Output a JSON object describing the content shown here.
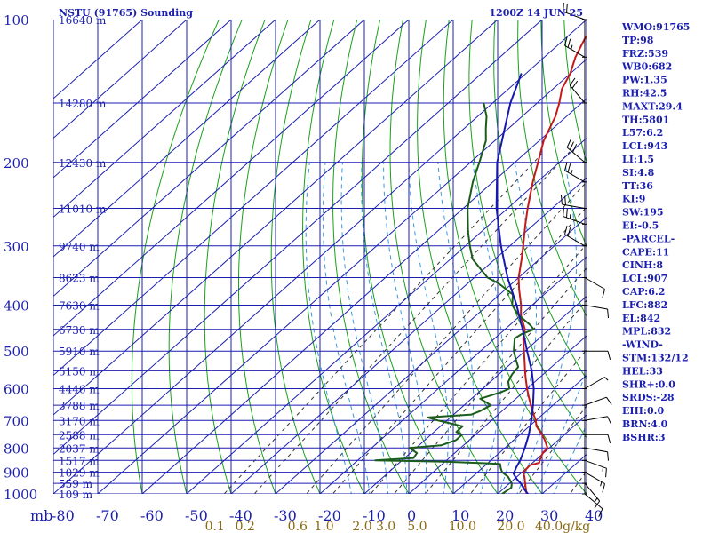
{
  "header": {
    "station": "NSTU (91765) Sounding",
    "time": "1200Z 14 JUN 25"
  },
  "colors": {
    "grid": "#1b1fb0",
    "temperature": "#c41a1a",
    "dewpoint": "#1a5c1a",
    "parcel": "#1818b0",
    "dry_adiabat": "#1aa01a",
    "moist_adiabat": "#3a98e0",
    "mixing_ratio": "#333333",
    "wind": "#000000"
  },
  "chart_data": {
    "type": "line",
    "title": "NSTU (91765) Sounding",
    "xlabel": "",
    "ylabel": "mb",
    "xlim": [
      -80,
      40
    ],
    "ylim": [
      1000,
      100
    ],
    "y_scale": "log-pressure",
    "skew": true,
    "grid": true,
    "pressure_ticks": [
      100,
      200,
      300,
      400,
      500,
      600,
      700,
      800,
      900,
      1000
    ],
    "temp_ticks": [
      -80,
      -70,
      -60,
      -50,
      -40,
      -30,
      -20,
      -10,
      0,
      10,
      20,
      30,
      40
    ],
    "height_labels": [
      {
        "p": 100,
        "label": "16640 m"
      },
      {
        "p": 150,
        "label": "14280 m"
      },
      {
        "p": 200,
        "label": "12430 m"
      },
      {
        "p": 250,
        "label": "11010 m"
      },
      {
        "p": 300,
        "label": "9740 m"
      },
      {
        "p": 350,
        "label": "8623 m"
      },
      {
        "p": 400,
        "label": "7630 m"
      },
      {
        "p": 450,
        "label": "6730 m"
      },
      {
        "p": 500,
        "label": "5910 m"
      },
      {
        "p": 550,
        "label": "5150 m"
      },
      {
        "p": 600,
        "label": "4446 m"
      },
      {
        "p": 650,
        "label": "3788 m"
      },
      {
        "p": 700,
        "label": "3170 m"
      },
      {
        "p": 750,
        "label": "2588 m"
      },
      {
        "p": 800,
        "label": "2037 m"
      },
      {
        "p": 850,
        "label": "1517 m"
      },
      {
        "p": 900,
        "label": "1029 m"
      },
      {
        "p": 950,
        "label": "559 m"
      },
      {
        "p": 1000,
        "label": "109 m"
      }
    ],
    "mixing_ratio_labels": [
      "0.1",
      "0.2",
      "0.6",
      "1.0",
      "2.0",
      "3.0",
      "5.0",
      "10.0",
      "20.0",
      "40.0"
    ],
    "mixing_ratio_unit": "g/kg",
    "series": [
      {
        "name": "",
        "role": "temperature",
        "points": [
          [
            1008,
            27.5
          ],
          [
            1000,
            26.5
          ],
          [
            950,
            23.5
          ],
          [
            925,
            22
          ],
          [
            900,
            20.3
          ],
          [
            870,
            20
          ],
          [
            860,
            21.5
          ],
          [
            850,
            21
          ],
          [
            820,
            19.8
          ],
          [
            800,
            19.6
          ],
          [
            770,
            17
          ],
          [
            750,
            15
          ],
          [
            720,
            11.6
          ],
          [
            700,
            10
          ],
          [
            680,
            8
          ],
          [
            650,
            5
          ],
          [
            620,
            2
          ],
          [
            600,
            0
          ],
          [
            570,
            -3
          ],
          [
            550,
            -5
          ],
          [
            530,
            -7
          ],
          [
            500,
            -10.2
          ],
          [
            470,
            -13.6
          ],
          [
            450,
            -15.5
          ],
          [
            420,
            -20
          ],
          [
            400,
            -22.5
          ],
          [
            370,
            -27
          ],
          [
            350,
            -30
          ],
          [
            320,
            -34
          ],
          [
            300,
            -37
          ],
          [
            270,
            -42
          ],
          [
            250,
            -45.5
          ],
          [
            220,
            -51
          ],
          [
            200,
            -54.8
          ],
          [
            180,
            -59
          ],
          [
            160,
            -62.5
          ],
          [
            150,
            -65
          ],
          [
            140,
            -68
          ],
          [
            130,
            -70
          ],
          [
            120,
            -73
          ],
          [
            110,
            -75.5
          ],
          [
            100,
            -77.5
          ]
        ]
      },
      {
        "name": "",
        "role": "dewpoint",
        "points": [
          [
            1000,
            21
          ],
          [
            970,
            21.5
          ],
          [
            950,
            20.5
          ],
          [
            920,
            18
          ],
          [
            900,
            15.5
          ],
          [
            880,
            14
          ],
          [
            865,
            13
          ],
          [
            862,
            10
          ],
          [
            855,
            0
          ],
          [
            850,
            -16
          ],
          [
            840,
            -8
          ],
          [
            820,
            -8.5
          ],
          [
            800,
            -11.5
          ],
          [
            790,
            -5
          ],
          [
            770,
            -3
          ],
          [
            750,
            -3
          ],
          [
            740,
            -5
          ],
          [
            720,
            -5
          ],
          [
            700,
            -12
          ],
          [
            690,
            -15
          ],
          [
            680,
            -6
          ],
          [
            670,
            -5
          ],
          [
            650,
            -4
          ],
          [
            630,
            -8
          ],
          [
            610,
            -5
          ],
          [
            600,
            -4
          ],
          [
            580,
            -6
          ],
          [
            560,
            -7
          ],
          [
            540,
            -7.5
          ],
          [
            520,
            -10
          ],
          [
            500,
            -12.5
          ],
          [
            480,
            -14.5
          ],
          [
            470,
            -15.5
          ],
          [
            460,
            -15
          ],
          [
            450,
            -13.5
          ],
          [
            440,
            -15.5
          ],
          [
            420,
            -20.5
          ],
          [
            400,
            -24.5
          ],
          [
            380,
            -27
          ],
          [
            360,
            -33
          ],
          [
            350,
            -37
          ],
          [
            320,
            -45
          ],
          [
            300,
            -49
          ],
          [
            280,
            -53
          ],
          [
            250,
            -59
          ],
          [
            220,
            -64.5
          ],
          [
            200,
            -68
          ],
          [
            180,
            -72
          ],
          [
            170,
            -75
          ],
          [
            160,
            -78
          ],
          [
            150,
            -82
          ]
        ]
      },
      {
        "name": "",
        "role": "parcel",
        "points": [
          [
            1008,
            27.5
          ],
          [
            980,
            25
          ],
          [
            950,
            22.5
          ],
          [
            930,
            20.5
          ],
          [
            907,
            18.5
          ],
          [
            880,
            17.5
          ],
          [
            850,
            16.6
          ],
          [
            800,
            14.5
          ],
          [
            750,
            12
          ],
          [
            700,
            9
          ],
          [
            650,
            5.5
          ],
          [
            600,
            1.5
          ],
          [
            550,
            -3.5
          ],
          [
            500,
            -9.5
          ],
          [
            450,
            -16
          ],
          [
            400,
            -23.5
          ],
          [
            350,
            -32.5
          ],
          [
            300,
            -42
          ],
          [
            250,
            -52.5
          ],
          [
            200,
            -64
          ],
          [
            150,
            -76
          ],
          [
            130,
            -81
          ]
        ]
      }
    ],
    "wind_barbs": [
      {
        "p": 1000,
        "dir": 130,
        "spd": 10
      },
      {
        "p": 950,
        "dir": 140,
        "spd": 15
      },
      {
        "p": 900,
        "dir": 120,
        "spd": 15
      },
      {
        "p": 850,
        "dir": 110,
        "spd": 15
      },
      {
        "p": 800,
        "dir": 100,
        "spd": 10
      },
      {
        "p": 750,
        "dir": 90,
        "spd": 10
      },
      {
        "p": 700,
        "dir": 80,
        "spd": 10
      },
      {
        "p": 650,
        "dir": 70,
        "spd": 10
      },
      {
        "p": 600,
        "dir": 60,
        "spd": 5
      },
      {
        "p": 500,
        "dir": 90,
        "spd": 10
      },
      {
        "p": 400,
        "dir": 100,
        "spd": 10
      },
      {
        "p": 350,
        "dir": 120,
        "spd": 10
      },
      {
        "p": 300,
        "dir": 300,
        "spd": 20
      },
      {
        "p": 270,
        "dir": 290,
        "spd": 25
      },
      {
        "p": 250,
        "dir": 280,
        "spd": 20
      },
      {
        "p": 220,
        "dir": 300,
        "spd": 25
      },
      {
        "p": 200,
        "dir": 310,
        "spd": 30
      },
      {
        "p": 150,
        "dir": 320,
        "spd": 20
      },
      {
        "p": 120,
        "dir": 300,
        "spd": 25
      },
      {
        "p": 100,
        "dir": 290,
        "spd": 20
      }
    ]
  },
  "indices": [
    "WMO:91765",
    "TP:98",
    "FRZ:539",
    "WB0:682",
    "PW:1.35",
    "RH:42.5",
    "MAXT:29.4",
    "TH:5801",
    "L57:6.2",
    "LCL:943",
    "LI:1.5",
    "SI:4.8",
    "TT:36",
    "KI:9",
    "SW:195",
    "EI:-0.5",
    "-PARCEL-",
    "CAPE:11",
    "CINH:8",
    "LCL:907",
    "CAP:6.2",
    "LFC:882",
    "EL:842",
    "MPL:832",
    "-WIND-",
    "STM:132/12",
    "HEL:33",
    "SHR+:0.0",
    "SRDS:-28",
    "EHI:0.0",
    "BRN:4.0",
    "BSHR:3"
  ]
}
